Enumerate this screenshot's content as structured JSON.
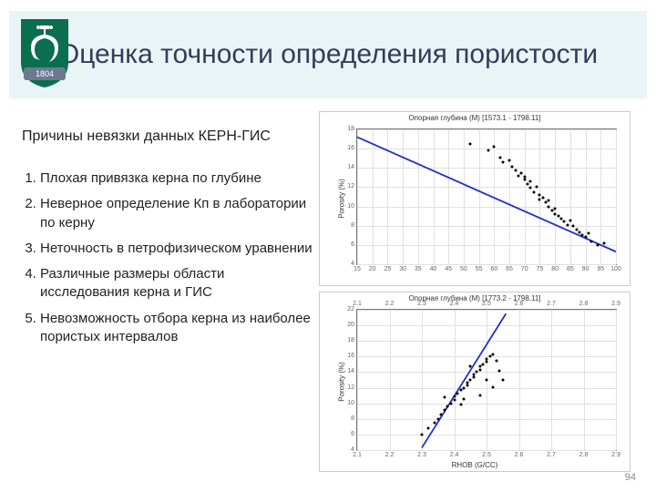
{
  "title": "Оценка точности определения пористости",
  "subheader": "Причины невязки данных КЕРН-ГИС",
  "list_items": [
    "Плохая привязка керна по глубине",
    "Неверное определение Кп в лаборатории по керну",
    "Неточность в петрофизическом уравнении",
    "Различные размеры области исследования керна и ГИС",
    "Невозможность отбора керна из наиболее пористых интервалов"
  ],
  "page_number": "94",
  "logo": {
    "bg": "#0b6e4f",
    "shield": "#ffffff",
    "ribbon": "#6b7a8f",
    "year": "1804"
  },
  "chart1": {
    "type": "scatter",
    "title": "Опорная глубина (М) [1573.1 - 1798.11]",
    "xlabel": "",
    "ylabel": "Porosity (%)",
    "xlim": [
      15,
      100
    ],
    "xticks": [
      15,
      20,
      25,
      30,
      35,
      40,
      45,
      50,
      55,
      60,
      65,
      70,
      75,
      80,
      85,
      90,
      95,
      100
    ],
    "ylim": [
      4,
      18
    ],
    "yticks": [
      4,
      6,
      8,
      10,
      12,
      14,
      16,
      18
    ],
    "grid_color": "#e0e0e0",
    "line": {
      "x1": 15,
      "y1": 17.2,
      "x2": 100,
      "y2": 5.3,
      "color": "#2030cc",
      "width": 1.8
    },
    "point_color": "#000000",
    "points": [
      [
        52,
        16.5
      ],
      [
        58,
        15.8
      ],
      [
        60,
        16.2
      ],
      [
        62,
        15.1
      ],
      [
        63,
        14.6
      ],
      [
        65,
        14.8
      ],
      [
        66,
        14.1
      ],
      [
        67,
        13.7
      ],
      [
        68,
        13.2
      ],
      [
        69,
        13.5
      ],
      [
        70,
        12.8
      ],
      [
        70,
        13.1
      ],
      [
        71,
        12.3
      ],
      [
        72,
        12.6
      ],
      [
        72,
        11.9
      ],
      [
        73,
        11.5
      ],
      [
        74,
        12.0
      ],
      [
        75,
        11.2
      ],
      [
        75,
        10.7
      ],
      [
        76,
        10.9
      ],
      [
        77,
        10.4
      ],
      [
        78,
        10.0
      ],
      [
        78,
        10.6
      ],
      [
        79,
        9.6
      ],
      [
        80,
        9.8
      ],
      [
        80,
        9.2
      ],
      [
        81,
        9.0
      ],
      [
        82,
        8.7
      ],
      [
        83,
        8.4
      ],
      [
        84,
        8.1
      ],
      [
        85,
        8.5
      ],
      [
        86,
        8.0
      ],
      [
        87,
        7.6
      ],
      [
        88,
        7.3
      ],
      [
        89,
        7.0
      ],
      [
        90,
        6.8
      ],
      [
        91,
        7.2
      ],
      [
        92,
        6.4
      ],
      [
        94,
        6.0
      ],
      [
        96,
        6.2
      ]
    ]
  },
  "chart2": {
    "type": "scatter",
    "title": "Опорная глубина (М) [1773.2 - 1798.11]",
    "xlabel": "RHOB (G/CC)",
    "ylabel": "Porosity (%)",
    "xlim_top": [
      2.9,
      2.8,
      2.7,
      2.6,
      2.5,
      2.4,
      2.3,
      2.2,
      2.1
    ],
    "xlim": [
      2.1,
      2.9
    ],
    "xticks": [
      2.1,
      2.2,
      2.3,
      2.4,
      2.5,
      2.6,
      2.7,
      2.8,
      2.9
    ],
    "ylim": [
      4,
      22
    ],
    "yticks": [
      4,
      6,
      8,
      10,
      12,
      14,
      16,
      18,
      20,
      22
    ],
    "grid_color": "#e0e0e0",
    "line": {
      "x1": 2.3,
      "y1": 4.3,
      "x2": 2.56,
      "y2": 21.5,
      "color": "#2030cc",
      "width": 1.8
    },
    "point_color": "#000000",
    "points": [
      [
        2.3,
        6.0
      ],
      [
        2.32,
        6.8
      ],
      [
        2.34,
        7.5
      ],
      [
        2.35,
        8.0
      ],
      [
        2.36,
        8.6
      ],
      [
        2.37,
        9.1
      ],
      [
        2.38,
        9.6
      ],
      [
        2.39,
        10.0
      ],
      [
        2.4,
        10.4
      ],
      [
        2.4,
        10.9
      ],
      [
        2.41,
        11.2
      ],
      [
        2.42,
        11.7
      ],
      [
        2.43,
        12.0
      ],
      [
        2.44,
        12.3
      ],
      [
        2.44,
        12.7
      ],
      [
        2.45,
        13.0
      ],
      [
        2.46,
        13.3
      ],
      [
        2.46,
        13.7
      ],
      [
        2.47,
        14.0
      ],
      [
        2.48,
        14.3
      ],
      [
        2.48,
        14.7
      ],
      [
        2.49,
        15.0
      ],
      [
        2.5,
        15.3
      ],
      [
        2.5,
        15.7
      ],
      [
        2.51,
        16.0
      ],
      [
        2.52,
        16.3
      ],
      [
        2.53,
        15.4
      ],
      [
        2.54,
        14.2
      ],
      [
        2.42,
        9.8
      ],
      [
        2.37,
        10.8
      ],
      [
        2.52,
        12.1
      ],
      [
        2.55,
        13.0
      ],
      [
        2.48,
        11.0
      ],
      [
        2.45,
        14.8
      ],
      [
        2.5,
        13.0
      ],
      [
        2.43,
        10.5
      ]
    ]
  }
}
